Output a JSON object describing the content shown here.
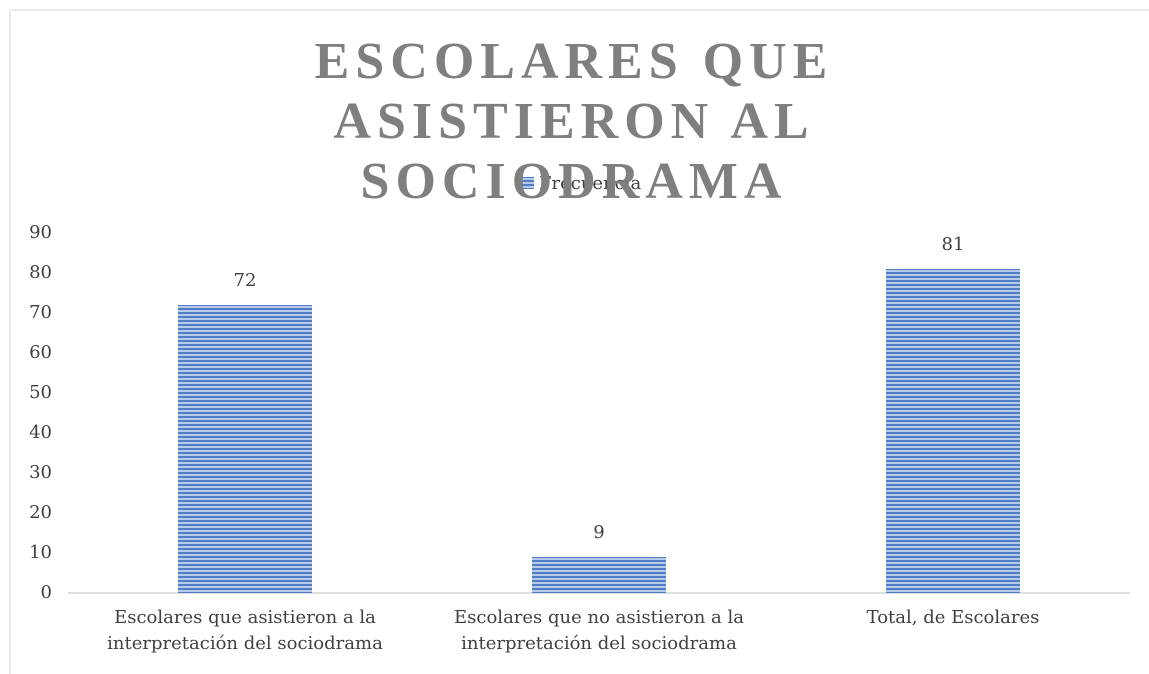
{
  "chart_data": {
    "type": "bar",
    "title": "ESCOLARES QUE ASISTIERON AL SOCIODRAMA",
    "categories": [
      "Escolares que asistieron a la interpretación del sociodrama",
      "Escolares que no asistieron a la interpretación del sociodrama",
      "Total, de Escolares"
    ],
    "series": [
      {
        "name": "Frecuencia",
        "color": "#4f7cc4",
        "values": [
          72,
          9,
          81
        ]
      }
    ],
    "ylim": [
      0,
      90
    ],
    "yticks": [
      0,
      10,
      20,
      30,
      40,
      50,
      60,
      70,
      80,
      90
    ],
    "grid": false,
    "legend": "top"
  }
}
